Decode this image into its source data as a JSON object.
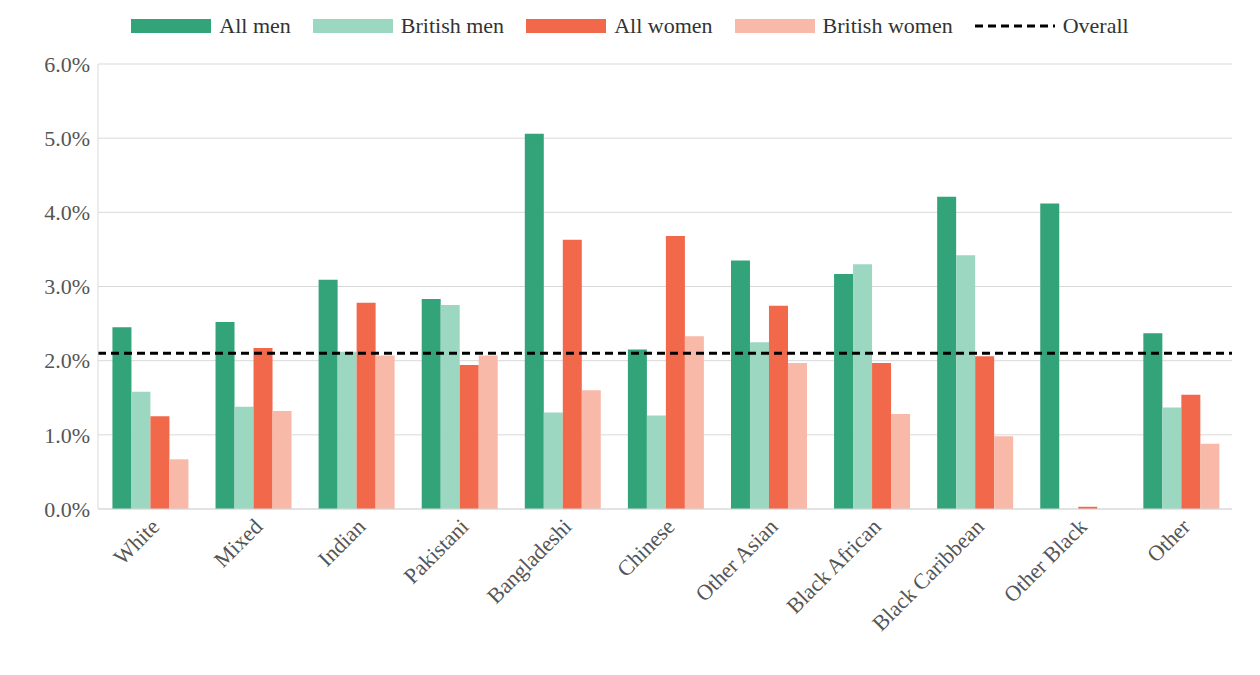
{
  "chart_data": {
    "type": "bar",
    "categories": [
      "White",
      "Mixed",
      "Indian",
      "Pakistani",
      "Bangladeshi",
      "Chinese",
      "Other Asian",
      "Black African",
      "Black Caribbean",
      "Other Black",
      "Other"
    ],
    "series": [
      {
        "name": "All men",
        "color": "#33a37a",
        "values": [
          2.45,
          2.52,
          3.09,
          2.83,
          5.06,
          2.15,
          3.35,
          3.17,
          4.21,
          4.12,
          2.37
        ]
      },
      {
        "name": "British men",
        "color": "#9bd7c1",
        "values": [
          1.58,
          1.38,
          2.12,
          2.75,
          1.3,
          1.26,
          2.25,
          3.3,
          3.42,
          null,
          1.37
        ]
      },
      {
        "name": "All women",
        "color": "#f1684b",
        "values": [
          1.25,
          2.17,
          2.78,
          1.94,
          3.63,
          3.68,
          2.74,
          1.97,
          2.06,
          0.03,
          1.54
        ]
      },
      {
        "name": "British women",
        "color": "#f8b9a9",
        "values": [
          0.67,
          1.32,
          2.07,
          2.07,
          1.6,
          2.33,
          1.97,
          1.28,
          0.98,
          null,
          0.88
        ]
      }
    ],
    "overall": {
      "name": "Overall",
      "value": 2.1,
      "color": "#000000",
      "line_style": "dashed"
    },
    "ylim": [
      0,
      6
    ],
    "yticks": [
      {
        "value": 0,
        "label": "0.0%"
      },
      {
        "value": 1,
        "label": "1.0%"
      },
      {
        "value": 2,
        "label": "2.0%"
      },
      {
        "value": 3,
        "label": "3.0%"
      },
      {
        "value": 4,
        "label": "4.0%"
      },
      {
        "value": 5,
        "label": "5.0%"
      },
      {
        "value": 6,
        "label": "6.0%"
      }
    ],
    "grid": true,
    "legend": "top"
  }
}
